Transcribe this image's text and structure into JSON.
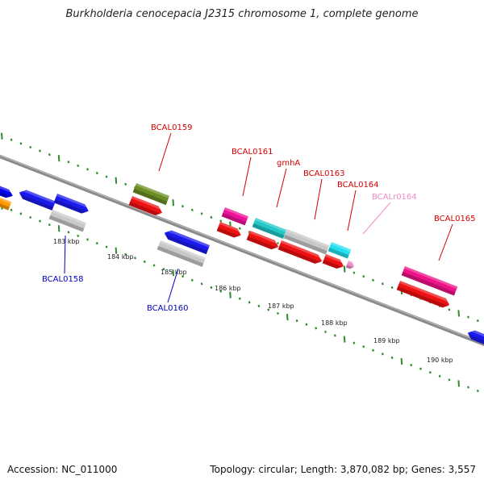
{
  "title": "Burkholderia cenocepacia J2315 chromosome 1, complete genome",
  "footer": {
    "accession": "Accession: NC_011000",
    "topology": "Topology: circular; Length: 3,870,082 bp; Genes: 3,557"
  },
  "colors": {
    "backbone": "#8a8a8a",
    "dots": "#2e8b2e",
    "label_red": "#d40000",
    "label_blue": "#0000c0",
    "label_pink": "#f08cc8"
  },
  "ticks": [
    {
      "label": "183 kbp"
    },
    {
      "label": "184 kbp"
    },
    {
      "label": "185 kbp"
    },
    {
      "label": "186 kbp"
    },
    {
      "label": "187 kbp"
    },
    {
      "label": "188 kbp"
    },
    {
      "label": "189 kbp"
    },
    {
      "label": "190 kbp"
    }
  ],
  "labels": [
    {
      "text": "BCAL0159",
      "color": "label_red"
    },
    {
      "text": "BCAL0161",
      "color": "label_red"
    },
    {
      "text": "gmhA",
      "color": "label_red"
    },
    {
      "text": "BCAL0163",
      "color": "label_red"
    },
    {
      "text": "BCAL0164",
      "color": "label_red"
    },
    {
      "text": "BCALr0164",
      "color": "label_pink"
    },
    {
      "text": "BCAL0165",
      "color": "label_red"
    },
    {
      "text": "BCAL0158",
      "color": "label_blue"
    },
    {
      "text": "BCAL0160",
      "color": "label_blue"
    }
  ],
  "features": [
    {
      "name": "orange-fragment",
      "color": "#ff9a00"
    },
    {
      "name": "blue-fragment-left",
      "color": "#0000ee"
    },
    {
      "name": "blue-gene-1",
      "color": "#1a1aee"
    },
    {
      "name": "blue-gene-2",
      "color": "#1a1aee"
    },
    {
      "name": "grey-gene-bcal0158",
      "color": "#c8c8c8"
    },
    {
      "name": "olive-gene-bcal0159",
      "color": "#6b8e23"
    },
    {
      "name": "red-cds-bcal0159",
      "color": "#ee1111"
    },
    {
      "name": "blue-gene-bcal0160",
      "color": "#1a1aee"
    },
    {
      "name": "grey-gene-bcal0160",
      "color": "#c8c8c8"
    },
    {
      "name": "magenta-gene-bcal0161",
      "color": "#ee1199"
    },
    {
      "name": "red-cds-bcal0161",
      "color": "#ee1111"
    },
    {
      "name": "cyan-gene-gmha",
      "color": "#22c8c8"
    },
    {
      "name": "grey-gene-bcal0163",
      "color": "#c8c8c8"
    },
    {
      "name": "cyan-gene-bcal0164",
      "color": "#22e0f0"
    },
    {
      "name": "red-cds-gmha",
      "color": "#ee1111"
    },
    {
      "name": "red-cds-bcal0163",
      "color": "#ee1111"
    },
    {
      "name": "red-cds-bcal0164",
      "color": "#ee1111"
    },
    {
      "name": "pink-rna-bcalr0164",
      "color": "#f08cc8"
    },
    {
      "name": "magenta-gene-bcal0165",
      "color": "#ee1188"
    },
    {
      "name": "red-cds-bcal0165",
      "color": "#ee1111"
    },
    {
      "name": "blue-fragment-right",
      "color": "#1a1aee"
    }
  ]
}
